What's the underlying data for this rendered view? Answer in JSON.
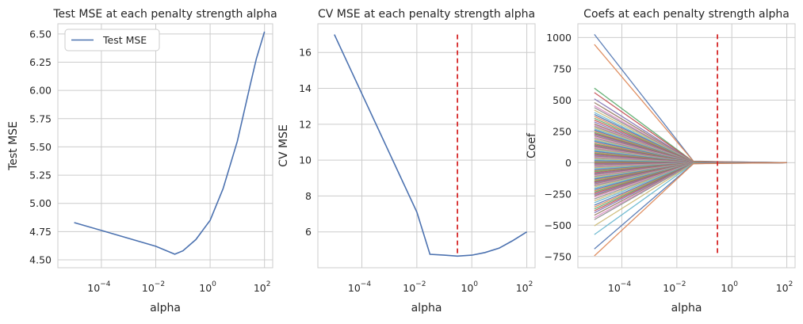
{
  "chart_data": [
    {
      "type": "line",
      "title": "Test MSE at each penalty strength alpha",
      "xlabel": "alpha",
      "ylabel": "Test MSE",
      "xscale": "log",
      "xlim": [
        2.51e-06,
        200
      ],
      "ylim": [
        4.43,
        6.59
      ],
      "x_ticks": [
        0.0001,
        0.01,
        1,
        100
      ],
      "x_tick_labels": [
        {
          "base": "10",
          "exp": "−4"
        },
        {
          "base": "10",
          "exp": "−2"
        },
        {
          "base": "10",
          "exp": "0"
        },
        {
          "base": "10",
          "exp": "2"
        }
      ],
      "y_ticks": [
        4.5,
        4.75,
        5.0,
        5.25,
        5.5,
        5.75,
        6.0,
        6.25,
        6.5
      ],
      "y_tick_labels": [
        "4.50",
        "4.75",
        "5.00",
        "5.25",
        "5.50",
        "5.75",
        "6.00",
        "6.25",
        "6.50"
      ],
      "grid": true,
      "legend": {
        "position": "upper-left",
        "entries": [
          "Test MSE"
        ]
      },
      "series": [
        {
          "name": "Test MSE",
          "color": "#4c72b0",
          "x": [
            1e-05,
            0.0001,
            0.001,
            0.01,
            0.05,
            0.1,
            0.3,
            1,
            3,
            10,
            30,
            50,
            100
          ],
          "y": [
            4.83,
            4.76,
            4.69,
            4.62,
            4.55,
            4.58,
            4.68,
            4.85,
            5.13,
            5.55,
            6.05,
            6.28,
            6.52
          ]
        }
      ]
    },
    {
      "type": "line",
      "title": "CV MSE at each penalty strength alpha",
      "xlabel": "alpha",
      "ylabel": "CV MSE",
      "xscale": "log",
      "xlim": [
        2.51e-06,
        200
      ],
      "ylim": [
        4.0,
        17.6
      ],
      "x_ticks": [
        0.0001,
        0.01,
        1,
        100
      ],
      "x_tick_labels": [
        {
          "base": "10",
          "exp": "−4"
        },
        {
          "base": "10",
          "exp": "−2"
        },
        {
          "base": "10",
          "exp": "0"
        },
        {
          "base": "10",
          "exp": "2"
        }
      ],
      "y_ticks": [
        6,
        8,
        10,
        12,
        14,
        16
      ],
      "y_tick_labels": [
        "6",
        "8",
        "10",
        "12",
        "14",
        "16"
      ],
      "grid": true,
      "series": [
        {
          "color": "#4c72b0",
          "x": [
            1e-05,
            2e-05,
            0.0001,
            0.001,
            0.01,
            0.03,
            0.1,
            0.3,
            1,
            3,
            10,
            30,
            100
          ],
          "y": [
            17.0,
            16.0,
            13.7,
            10.4,
            7.1,
            4.75,
            4.7,
            4.65,
            4.7,
            4.85,
            5.1,
            5.5,
            6.0
          ]
        }
      ],
      "vline": {
        "x": 0.3,
        "ymin": 4.65,
        "ymax": 17.0,
        "color": "#d62728",
        "style": "dashed"
      }
    },
    {
      "type": "line",
      "title": "Coefs at each penalty strength alpha",
      "xlabel": "alpha",
      "ylabel": "Coef",
      "xscale": "log",
      "xlim": [
        2.51e-06,
        200
      ],
      "ylim": [
        -840,
        1110
      ],
      "x_ticks": [
        0.0001,
        0.01,
        1,
        100
      ],
      "x_tick_labels": [
        {
          "base": "10",
          "exp": "−4"
        },
        {
          "base": "10",
          "exp": "−2"
        },
        {
          "base": "10",
          "exp": "0"
        },
        {
          "base": "10",
          "exp": "2"
        }
      ],
      "y_ticks": [
        -750,
        -500,
        -250,
        0,
        250,
        500,
        750,
        1000
      ],
      "y_tick_labels": [
        "−750",
        "−500",
        "−250",
        "0",
        "250",
        "500",
        "750",
        "1000"
      ],
      "grid": true,
      "palette": [
        "#4c72b0",
        "#dd8452",
        "#55a868",
        "#c44e52",
        "#8172b3",
        "#937860",
        "#da8bc3",
        "#8c8c8c",
        "#ccb974",
        "#64b5cd"
      ],
      "coef_path_x": [
        1e-05,
        0.04,
        0.3,
        100
      ],
      "coef_path_shrink": [
        1.0,
        0.012,
        0.008,
        0.0
      ],
      "coef_start_values": [
        1025,
        945,
        595,
        560,
        510,
        480,
        455,
        440,
        420,
        400,
        385,
        370,
        355,
        340,
        325,
        310,
        300,
        290,
        280,
        270,
        260,
        250,
        240,
        232,
        225,
        215,
        205,
        195,
        185,
        178,
        170,
        160,
        150,
        142,
        135,
        128,
        120,
        112,
        105,
        98,
        90,
        82,
        75,
        68,
        60,
        52,
        45,
        38,
        30,
        22,
        15,
        8,
        2,
        -5,
        -12,
        -20,
        -28,
        -35,
        -42,
        -50,
        -58,
        -65,
        -72,
        -80,
        -88,
        -95,
        -102,
        -110,
        -118,
        -125,
        -132,
        -140,
        -148,
        -155,
        -162,
        -170,
        -178,
        -185,
        -195,
        -205,
        -215,
        -225,
        -235,
        -245,
        -255,
        -265,
        -275,
        -290,
        -305,
        -320,
        -340,
        -355,
        -370,
        -385,
        -400,
        -420,
        -440,
        -455,
        -505,
        -575,
        -690,
        -745
      ],
      "vline": {
        "x": 0.3,
        "ymin": -745,
        "ymax": 1025,
        "color": "#d62728",
        "style": "dashed"
      }
    }
  ]
}
